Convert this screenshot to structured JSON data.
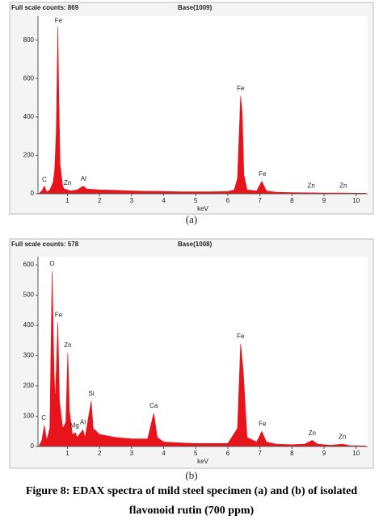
{
  "chart_data": [
    {
      "type": "area",
      "header_left": "Full scale counts: 869",
      "header_right": "Base(1009)",
      "label": "(a)",
      "xlabel": "keV",
      "color": "#e8141c",
      "x": [
        0.1,
        0.2,
        0.28,
        0.35,
        0.45,
        0.55,
        0.6,
        0.65,
        0.7,
        0.73,
        0.77,
        0.85,
        0.9,
        1.0,
        1.1,
        1.3,
        1.49,
        1.6,
        2,
        2.5,
        3,
        3.5,
        4,
        4.5,
        5,
        5.5,
        6,
        6.2,
        6.3,
        6.4,
        6.45,
        6.5,
        6.6,
        6.9,
        7.06,
        7.2,
        7.5,
        8,
        8.6,
        9,
        9.6,
        10,
        10.3
      ],
      "values": [
        0,
        15,
        40,
        10,
        20,
        60,
        120,
        320,
        869,
        500,
        150,
        40,
        25,
        20,
        15,
        20,
        40,
        25,
        20,
        18,
        15,
        13,
        12,
        10,
        10,
        10,
        12,
        20,
        80,
        510,
        420,
        100,
        20,
        15,
        65,
        15,
        8,
        6,
        5,
        4,
        4,
        3,
        3
      ],
      "annotations": [
        {
          "text": "C",
          "x": 0.28,
          "y": 50
        },
        {
          "text": "Fe",
          "x": 0.72,
          "y": 880
        },
        {
          "text": "Zn",
          "x": 1.0,
          "y": 35
        },
        {
          "text": "Al",
          "x": 1.5,
          "y": 55
        },
        {
          "text": "Fe",
          "x": 6.4,
          "y": 525
        },
        {
          "text": "Fe",
          "x": 7.08,
          "y": 80
        },
        {
          "text": "Zn",
          "x": 8.6,
          "y": 20
        },
        {
          "text": "Zn",
          "x": 9.6,
          "y": 20
        }
      ],
      "xlim": [
        0.08,
        10.36
      ],
      "ylim": [
        0,
        925
      ],
      "xticks": [
        1,
        2,
        3,
        4,
        5,
        6,
        7,
        8,
        9,
        10
      ],
      "yticks": [
        0,
        200,
        400,
        600,
        800
      ]
    },
    {
      "type": "area",
      "header_left": "Full scale counts: 578",
      "header_right": "Base(1008)",
      "label": "(b)",
      "xlabel": "keV",
      "color": "#e8141c",
      "x": [
        0.1,
        0.2,
        0.28,
        0.35,
        0.45,
        0.52,
        0.58,
        0.62,
        0.7,
        0.75,
        0.85,
        0.95,
        1.01,
        1.06,
        1.15,
        1.25,
        1.3,
        1.48,
        1.55,
        1.74,
        1.8,
        2,
        2.5,
        3,
        3.5,
        3.69,
        3.8,
        4,
        4.5,
        5,
        5.5,
        6,
        6.3,
        6.4,
        6.48,
        6.6,
        6.9,
        7.06,
        7.2,
        7.5,
        8,
        8.4,
        8.63,
        8.8,
        9.2,
        9.57,
        9.8,
        10.3
      ],
      "values": [
        0,
        20,
        70,
        20,
        60,
        578,
        250,
        150,
        410,
        150,
        60,
        80,
        310,
        120,
        40,
        45,
        30,
        55,
        30,
        150,
        60,
        40,
        30,
        25,
        25,
        110,
        30,
        15,
        12,
        10,
        10,
        10,
        60,
        340,
        250,
        30,
        15,
        50,
        15,
        8,
        6,
        8,
        20,
        8,
        4,
        8,
        3,
        2
      ],
      "annotations": [
        {
          "text": "C",
          "x": 0.26,
          "y": 80
        },
        {
          "text": "O",
          "x": 0.52,
          "y": 590
        },
        {
          "text": "Fe",
          "x": 0.72,
          "y": 420
        },
        {
          "text": "Zn",
          "x": 1.01,
          "y": 320
        },
        {
          "text": "Mg",
          "x": 1.22,
          "y": 55
        },
        {
          "text": "Al",
          "x": 1.48,
          "y": 65
        },
        {
          "text": "Si",
          "x": 1.74,
          "y": 160
        },
        {
          "text": "Ca",
          "x": 3.69,
          "y": 120
        },
        {
          "text": "Fe",
          "x": 6.4,
          "y": 350
        },
        {
          "text": "Fe",
          "x": 7.08,
          "y": 60
        },
        {
          "text": "Zn",
          "x": 8.63,
          "y": 30
        },
        {
          "text": "Zn",
          "x": 9.57,
          "y": 18
        }
      ],
      "xlim": [
        0.08,
        10.36
      ],
      "ylim": [
        0,
        627
      ],
      "xticks": [
        1,
        2,
        3,
        4,
        5,
        6,
        7,
        8,
        9,
        10
      ],
      "yticks": [
        0,
        100,
        200,
        300,
        400,
        500,
        600
      ]
    }
  ],
  "caption": [
    "Figure 8: EDAX spectra of mild steel specimen (a) and (b) of isolated",
    "flavonoid rutin (700 ppm)"
  ]
}
